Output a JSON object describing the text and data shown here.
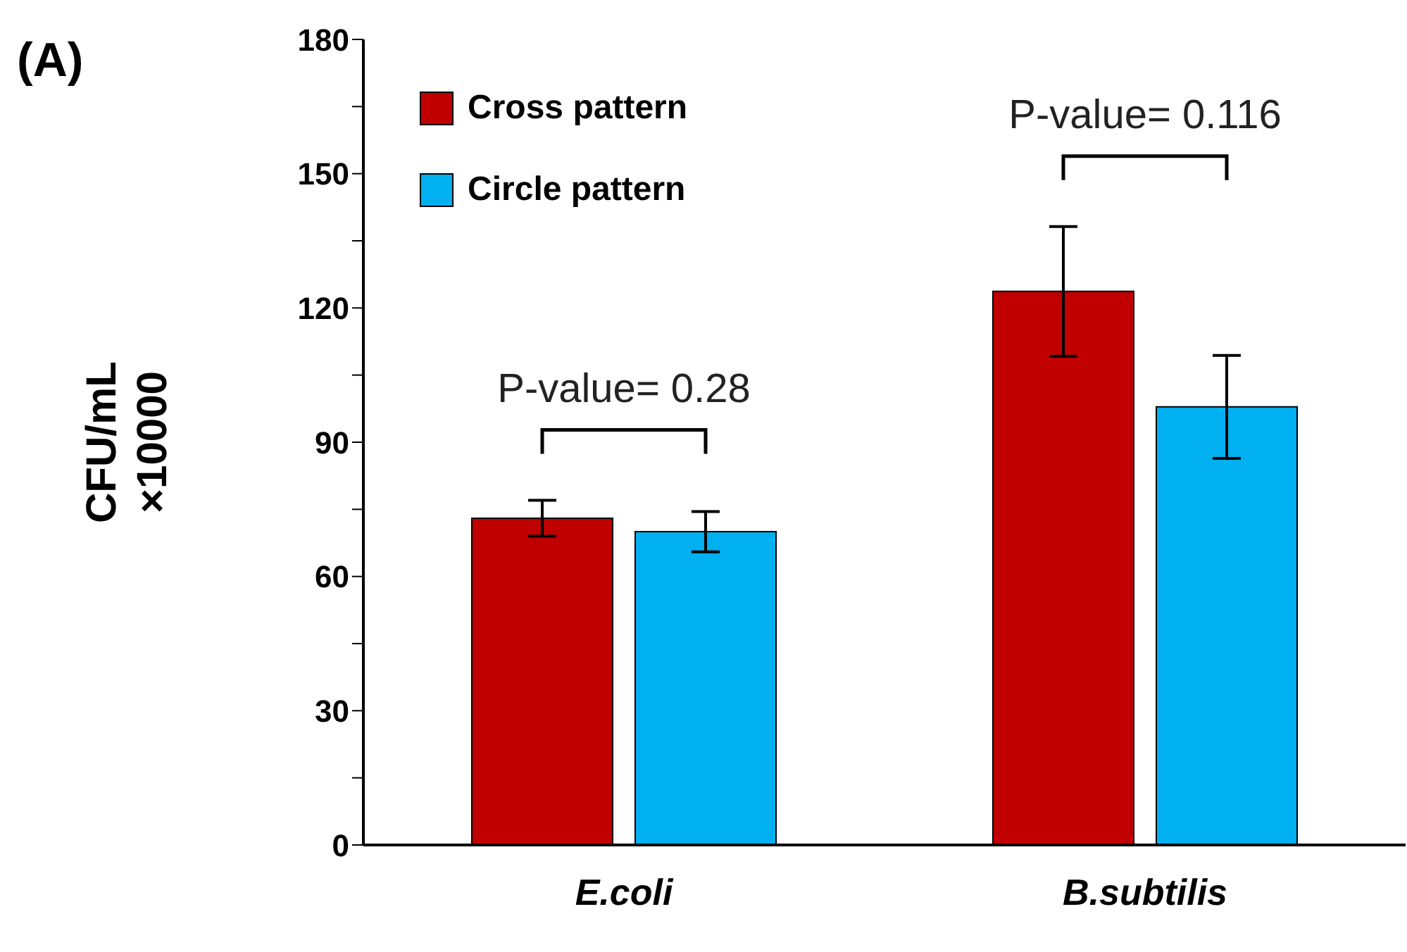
{
  "chart_data": {
    "type": "bar",
    "title": "(A)",
    "ylabel": "CFU/mL\n×10000",
    "categories": [
      "E.coli",
      "B.subtilis"
    ],
    "series": [
      {
        "name": "Cross pattern",
        "color": "#c00000",
        "values": [
          73,
          123.7
        ],
        "errors": [
          4,
          14.5
        ]
      },
      {
        "name": "Circle pattern",
        "color": "#00b0f0",
        "values": [
          70,
          97.9
        ],
        "errors": [
          4.5,
          11.5
        ]
      }
    ],
    "ylim": [
      0,
      180
    ],
    "yticks": [
      0,
      {
        "value": 15,
        "label": null
      },
      30,
      {
        "value": 45,
        "label": null
      },
      60,
      {
        "value": 75,
        "label": null
      },
      90,
      {
        "value": 105,
        "label": null
      },
      120,
      {
        "value": 135,
        "label": null
      },
      150,
      {
        "value": 165,
        "label": null
      },
      180
    ],
    "annotations": [
      "P-value= 0.28",
      "P-value= 0.116"
    ],
    "legend": "top left",
    "grid": false
  }
}
